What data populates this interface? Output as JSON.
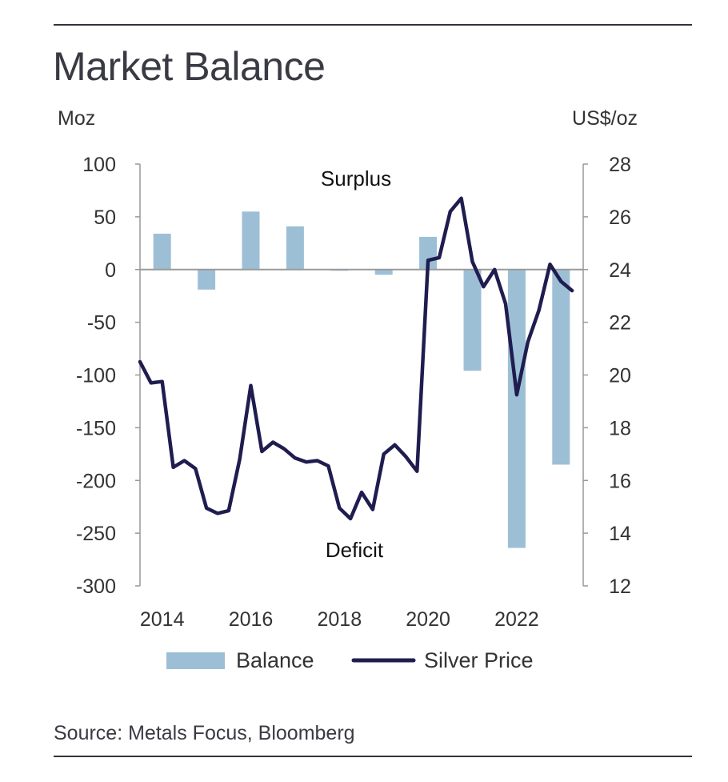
{
  "title": "Market Balance",
  "source": "Source: Metals Focus, Bloomberg",
  "colors": {
    "bar": "#9dbfd6",
    "line": "#1f1d4f",
    "axis": "#999999",
    "zero": "#9a9a9a",
    "rule": "#33333d"
  },
  "chart_data": {
    "type": "bar+line",
    "title": "Market Balance",
    "left_axis": {
      "unit": "Moz",
      "range": [
        -300,
        100
      ],
      "ticks": [
        100,
        50,
        0,
        -50,
        -100,
        -150,
        -200,
        -250,
        -300
      ]
    },
    "right_axis": {
      "unit": "US$/oz",
      "range": [
        12,
        28
      ],
      "ticks": [
        28,
        26,
        24,
        22,
        20,
        18,
        16,
        14,
        12
      ]
    },
    "x_labels": [
      "2014",
      "2016",
      "2018",
      "2020",
      "2022"
    ],
    "x_range": [
      2013.5,
      2023.5
    ],
    "annotations": {
      "surplus": "Surplus",
      "deficit": "Deficit"
    },
    "series": [
      {
        "name": "Balance",
        "kind": "bar",
        "axis": "left",
        "points": [
          {
            "year": 2014,
            "value": 34
          },
          {
            "year": 2015,
            "value": -19
          },
          {
            "year": 2016,
            "value": 55
          },
          {
            "year": 2017,
            "value": 41
          },
          {
            "year": 2018,
            "value": -1
          },
          {
            "year": 2019,
            "value": -5
          },
          {
            "year": 2020,
            "value": 31
          },
          {
            "year": 2021,
            "value": -96
          },
          {
            "year": 2022,
            "value": -264
          },
          {
            "year": 2023,
            "value": -185
          }
        ]
      },
      {
        "name": "Silver Price",
        "kind": "line",
        "axis": "right",
        "points": [
          [
            2013.5,
            20.5
          ],
          [
            2013.75,
            19.7
          ],
          [
            2014.0,
            19.75
          ],
          [
            2014.25,
            16.5
          ],
          [
            2014.5,
            16.75
          ],
          [
            2014.75,
            16.45
          ],
          [
            2015.0,
            14.95
          ],
          [
            2015.25,
            14.75
          ],
          [
            2015.5,
            14.85
          ],
          [
            2015.75,
            16.8
          ],
          [
            2016.0,
            19.6
          ],
          [
            2016.25,
            17.1
          ],
          [
            2016.5,
            17.45
          ],
          [
            2016.75,
            17.2
          ],
          [
            2017.0,
            16.85
          ],
          [
            2017.25,
            16.7
          ],
          [
            2017.5,
            16.75
          ],
          [
            2017.75,
            16.55
          ],
          [
            2018.0,
            14.95
          ],
          [
            2018.25,
            14.55
          ],
          [
            2018.5,
            15.55
          ],
          [
            2018.75,
            14.9
          ],
          [
            2019.0,
            17.0
          ],
          [
            2019.25,
            17.35
          ],
          [
            2019.5,
            16.9
          ],
          [
            2019.75,
            16.35
          ],
          [
            2020.0,
            24.35
          ],
          [
            2020.25,
            24.45
          ],
          [
            2020.5,
            26.2
          ],
          [
            2020.75,
            26.7
          ],
          [
            2021.0,
            24.3
          ],
          [
            2021.25,
            23.35
          ],
          [
            2021.5,
            24.0
          ],
          [
            2021.75,
            22.7
          ],
          [
            2022.0,
            19.25
          ],
          [
            2022.25,
            21.25
          ],
          [
            2022.5,
            22.45
          ],
          [
            2022.75,
            24.2
          ],
          [
            2023.0,
            23.55
          ],
          [
            2023.25,
            23.2
          ]
        ]
      }
    ],
    "legend": [
      {
        "label": "Balance",
        "kind": "bar"
      },
      {
        "label": "Silver Price",
        "kind": "line"
      }
    ],
    "legend_position": "bottom-center",
    "grid": false
  }
}
